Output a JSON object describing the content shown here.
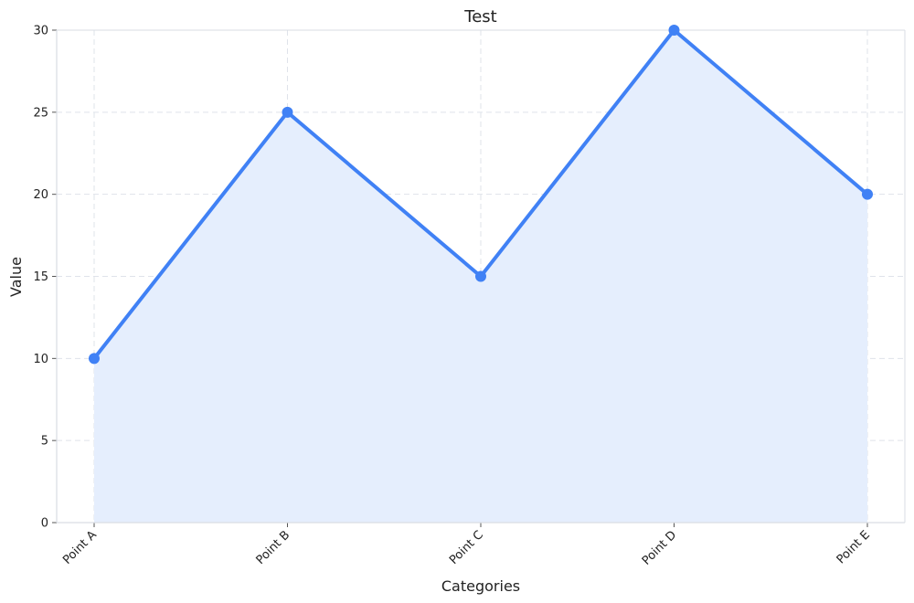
{
  "chart_data": {
    "type": "area",
    "title": "Test",
    "xlabel": "Categories",
    "ylabel": "Value",
    "categories": [
      "Point A",
      "Point B",
      "Point C",
      "Point D",
      "Point E"
    ],
    "values": [
      10,
      25,
      15,
      30,
      20
    ],
    "ylim": [
      0,
      30
    ],
    "yticks": [
      0,
      5,
      10,
      15,
      20,
      25,
      30
    ],
    "grid": true,
    "colors": {
      "line": "#4081f5",
      "fill": "#e5eefd",
      "grid": "#dfe3ea",
      "axis": "#d9dde3"
    }
  }
}
